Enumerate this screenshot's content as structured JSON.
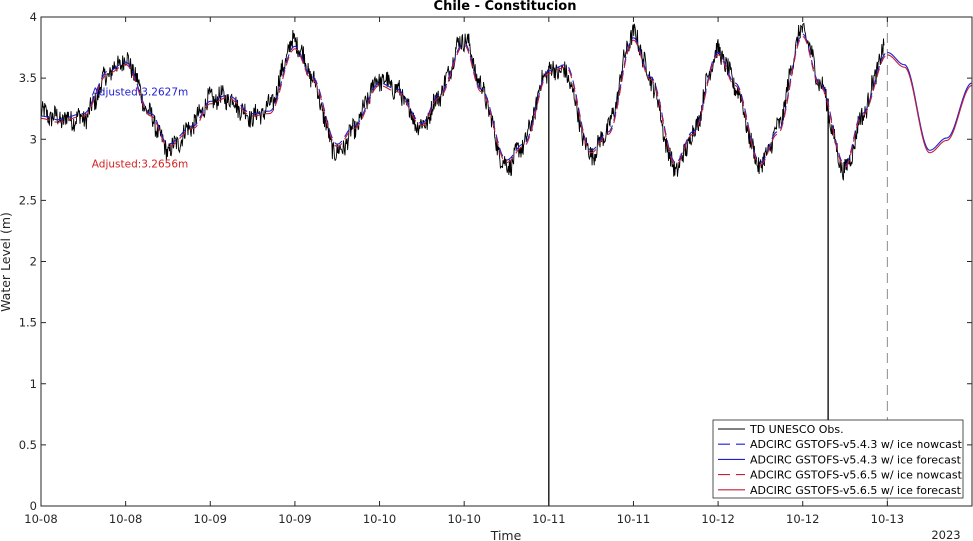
{
  "chart_data": {
    "type": "line",
    "title": "Chile - Constitucion",
    "xlabel": "Time",
    "ylabel": "Water Level (m)",
    "ylim": [
      0,
      4
    ],
    "xlim": [
      0,
      5.5
    ],
    "x_ticks": [
      {
        "x": 0.0,
        "label": "10-08"
      },
      {
        "x": 0.5,
        "label": "10-08"
      },
      {
        "x": 1.0,
        "label": "10-09"
      },
      {
        "x": 1.5,
        "label": "10-09"
      },
      {
        "x": 2.0,
        "label": "10-10"
      },
      {
        "x": 2.5,
        "label": "10-10"
      },
      {
        "x": 3.0,
        "label": "10-11"
      },
      {
        "x": 3.5,
        "label": "10-11"
      },
      {
        "x": 4.0,
        "label": "10-12"
      },
      {
        "x": 4.5,
        "label": "10-12"
      },
      {
        "x": 5.0,
        "label": "10-13"
      }
    ],
    "x_year_label": "2023",
    "y_ticks": [
      0,
      0.5,
      1,
      1.5,
      2,
      2.5,
      3,
      3.5,
      4
    ],
    "y_tick_labels": [
      "0",
      "0.5",
      "1",
      "1.5",
      "2",
      "2.5",
      "3",
      "3.5",
      "4"
    ],
    "nowcast_forecast_divider_x": 5.0,
    "legend_position": "bottom-right",
    "series": [
      {
        "name": "TD UNESCO Obs.",
        "color": "#000000",
        "dash": "solid",
        "x_range": [
          0,
          4.98
        ],
        "spikes": [
          {
            "x": 3.0,
            "min": 0.0
          },
          {
            "x": 4.65,
            "min": 0.7
          }
        ],
        "envelope_x": [
          0.0,
          0.25,
          0.5,
          0.75,
          1.0,
          1.25,
          1.5,
          1.75,
          2.0,
          2.25,
          2.5,
          2.75,
          3.0,
          3.25,
          3.5,
          3.75,
          4.0,
          4.25,
          4.5,
          4.75,
          4.98
        ],
        "envelope_y": [
          3.3,
          3.1,
          3.72,
          2.82,
          3.4,
          3.15,
          3.95,
          2.72,
          3.6,
          3.08,
          3.95,
          2.68,
          3.6,
          2.83,
          3.95,
          2.65,
          3.75,
          2.78,
          3.98,
          2.68,
          3.85
        ]
      },
      {
        "name": "ADCIRC GSTOFS-v5.4.3 w/ ice nowcast",
        "color": "#1f1fd0",
        "dash": "dashed",
        "x_range": [
          0,
          5.0
        ]
      },
      {
        "name": "ADCIRC GSTOFS-v5.4.3 w/ ice forecast",
        "color": "#1f1fd0",
        "dash": "solid",
        "x_range": [
          5.0,
          5.5
        ]
      },
      {
        "name": "ADCIRC GSTOFS-v5.6.5 w/ ice nowcast",
        "color": "#c0203a",
        "dash": "dashed",
        "x_range": [
          0,
          5.0
        ]
      },
      {
        "name": "ADCIRC GSTOFS-v5.6.5 w/ ice forecast",
        "color": "#c0203a",
        "dash": "solid",
        "x_range": [
          5.0,
          5.5
        ]
      }
    ],
    "model_curve_x": [
      0.0,
      0.1,
      0.25,
      0.4,
      0.5,
      0.65,
      0.75,
      0.9,
      1.0,
      1.1,
      1.25,
      1.35,
      1.5,
      1.6,
      1.75,
      1.85,
      2.0,
      2.1,
      2.25,
      2.35,
      2.5,
      2.6,
      2.75,
      2.85,
      3.0,
      3.1,
      3.25,
      3.35,
      3.5,
      3.6,
      3.75,
      3.85,
      4.0,
      4.1,
      4.25,
      4.35,
      4.5,
      4.6,
      4.75,
      4.85,
      5.0,
      5.1,
      5.25,
      5.35,
      5.5
    ],
    "model_curve_y": [
      3.18,
      3.15,
      3.2,
      3.55,
      3.62,
      3.2,
      2.95,
      3.1,
      3.3,
      3.35,
      3.2,
      3.22,
      3.75,
      3.5,
      2.95,
      3.1,
      3.45,
      3.4,
      3.12,
      3.35,
      3.78,
      3.4,
      2.82,
      2.95,
      3.55,
      3.6,
      2.9,
      3.05,
      3.82,
      3.5,
      2.8,
      3.05,
      3.7,
      3.45,
      2.8,
      3.05,
      3.85,
      3.45,
      2.78,
      3.2,
      3.7,
      3.6,
      2.9,
      3.0,
      3.45
    ],
    "annotations": [
      {
        "text": "Adjusted:3.2627m",
        "x": 0.3,
        "y": 3.39,
        "color": "#1f1fd0"
      },
      {
        "text": "Adjusted:3.2656m",
        "x": 0.3,
        "y": 2.8,
        "color": "#d42020"
      }
    ]
  }
}
